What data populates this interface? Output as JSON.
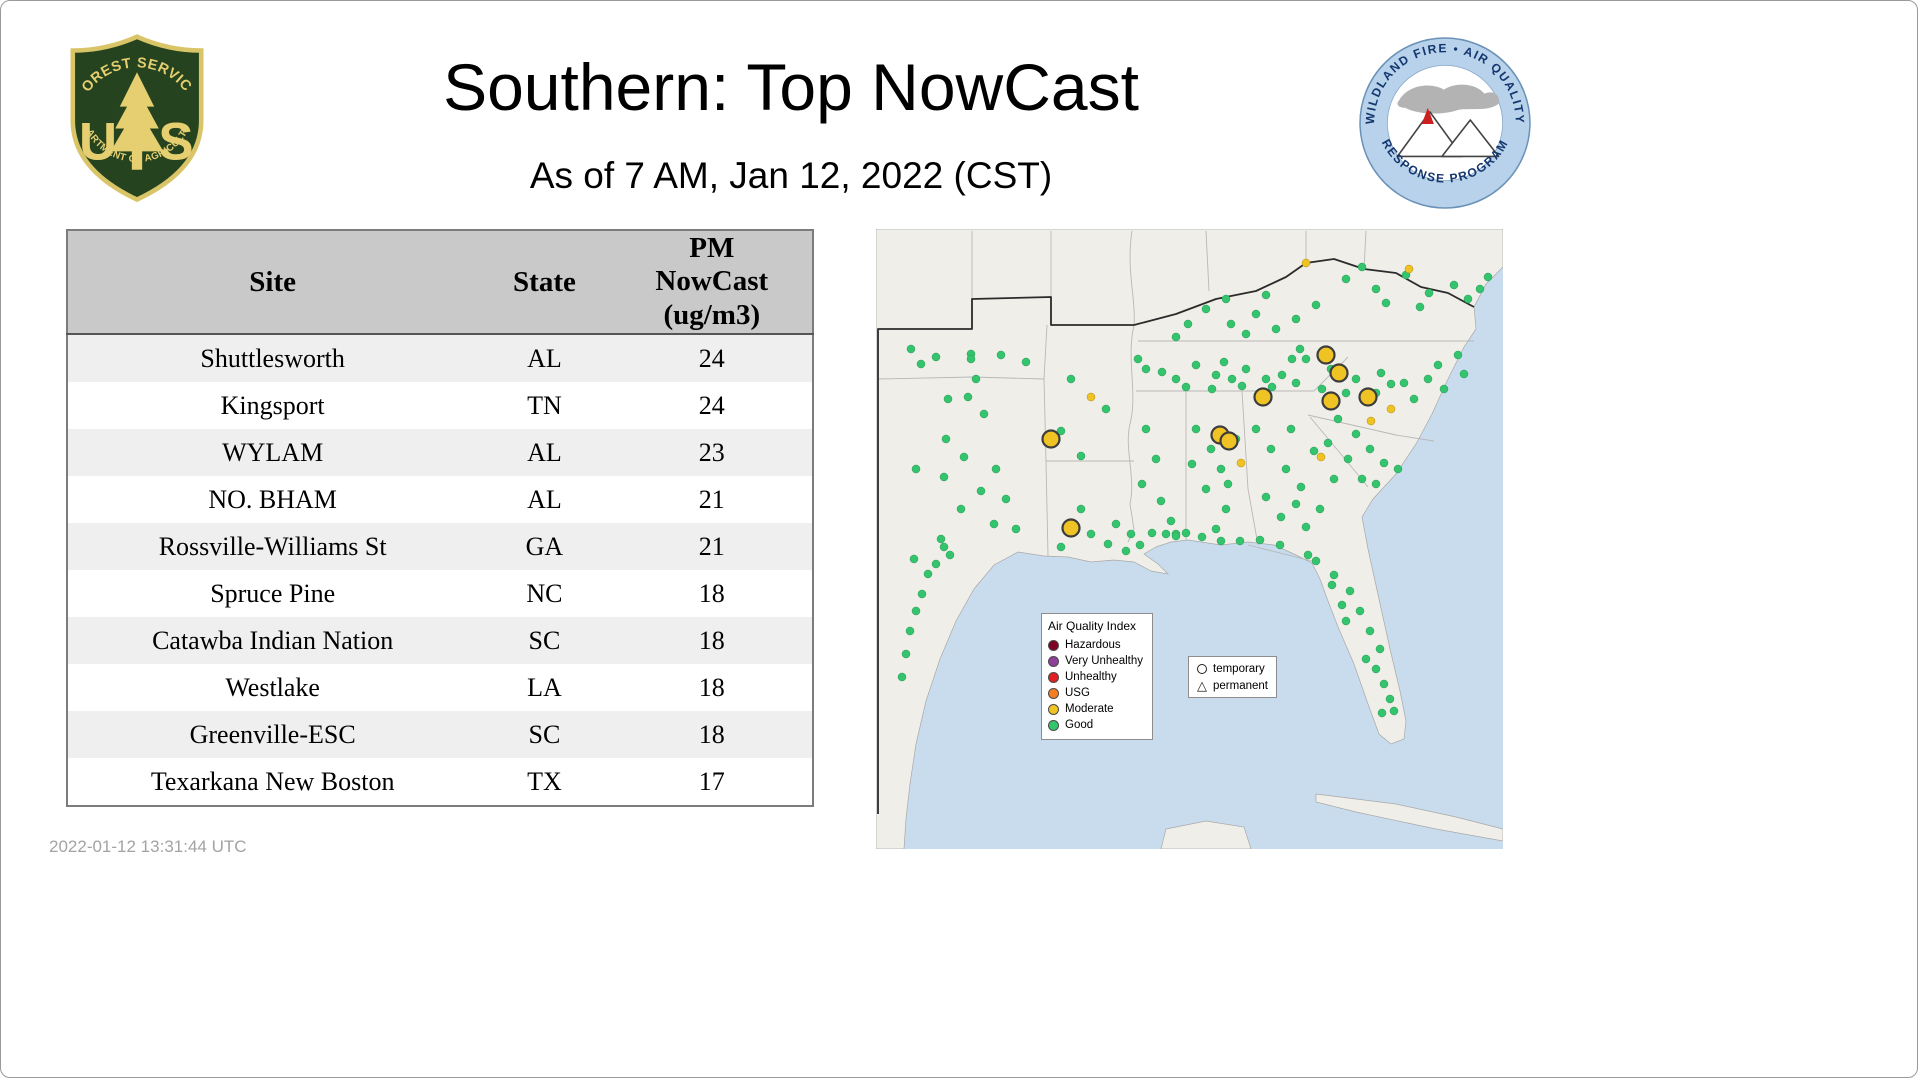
{
  "header": {
    "title": "Southern: Top NowCast",
    "subtitle": "As of 7 AM, Jan 12, 2022 (CST)",
    "usfs_logo": {
      "arc_top": "FOREST SERVICE",
      "letter_u": "U",
      "letter_s": "S",
      "arc_bottom": "DEPARTMENT OF AGRICULTURE"
    },
    "wfaqrp_logo": {
      "arc_top": "WILDLAND FIRE • AIR QUALITY",
      "arc_bottom": "RESPONSE PROGRAM"
    }
  },
  "footer": {
    "timestamp": "2022-01-12 13:31:44 UTC"
  },
  "table": {
    "columns": [
      "Site",
      "State",
      "PM NowCast (ug/m3)"
    ],
    "rows": [
      [
        "Shuttlesworth",
        "AL",
        "24"
      ],
      [
        "Kingsport",
        "TN",
        "24"
      ],
      [
        "WYLAM",
        "AL",
        "23"
      ],
      [
        "NO. BHAM",
        "AL",
        "21"
      ],
      [
        "Rossville-Williams St",
        "GA",
        "21"
      ],
      [
        "Spruce Pine",
        "NC",
        "18"
      ],
      [
        "Catawba Indian Nation",
        "SC",
        "18"
      ],
      [
        "Westlake",
        "LA",
        "18"
      ],
      [
        "Greenville-ESC",
        "SC",
        "18"
      ],
      [
        "Texarkana New Boston",
        "TX",
        "17"
      ]
    ]
  },
  "chart_data": {
    "type": "table",
    "title": "Southern: Top NowCast",
    "subtitle": "As of 7 AM, Jan 12, 2022 (CST)",
    "columns": [
      "Site",
      "State",
      "PM NowCast (ug/m3)"
    ],
    "rows": [
      [
        "Shuttlesworth",
        "AL",
        24
      ],
      [
        "Kingsport",
        "TN",
        24
      ],
      [
        "WYLAM",
        "AL",
        23
      ],
      [
        "NO. BHAM",
        "AL",
        21
      ],
      [
        "Rossville-Williams St",
        "GA",
        21
      ],
      [
        "Spruce Pine",
        "NC",
        18
      ],
      [
        "Catawba Indian Nation",
        "SC",
        18
      ],
      [
        "Westlake",
        "LA",
        18
      ],
      [
        "Greenville-ESC",
        "SC",
        18
      ],
      [
        "Texarkana New Boston",
        "TX",
        17
      ]
    ]
  },
  "map": {
    "colors": {
      "good": "#35c46e",
      "moderate": "#eec323"
    },
    "legend": {
      "title": "Air Quality Index",
      "items": [
        {
          "label": "Hazardous",
          "color": "#7e0023"
        },
        {
          "label": "Very Unhealthy",
          "color": "#8f3f97"
        },
        {
          "label": "Unhealthy",
          "color": "#e02020"
        },
        {
          "label": "USG",
          "color": "#f57e20"
        },
        {
          "label": "Moderate",
          "color": "#eec323"
        },
        {
          "label": "Good",
          "color": "#35c46e"
        }
      ]
    },
    "marker_legend": {
      "temporary": "temporary",
      "permanent": "permanent"
    },
    "points": {
      "good": [
        [
          95,
          125
        ],
        [
          100,
          150
        ],
        [
          92,
          168
        ],
        [
          108,
          185
        ],
        [
          70,
          210
        ],
        [
          88,
          228
        ],
        [
          120,
          240
        ],
        [
          105,
          262
        ],
        [
          85,
          280
        ],
        [
          118,
          295
        ],
        [
          65,
          310
        ],
        [
          72,
          170
        ],
        [
          130,
          270
        ],
        [
          140,
          300
        ],
        [
          68,
          248
        ],
        [
          45,
          135
        ],
        [
          40,
          240
        ],
        [
          68,
          318
        ],
        [
          74,
          326
        ],
        [
          60,
          335
        ],
        [
          52,
          345
        ],
        [
          46,
          365
        ],
        [
          40,
          382
        ],
        [
          34,
          402
        ],
        [
          30,
          425
        ],
        [
          26,
          448
        ],
        [
          38,
          330
        ],
        [
          60,
          128
        ],
        [
          95,
          130
        ],
        [
          125,
          126
        ],
        [
          150,
          133
        ],
        [
          35,
          120
        ],
        [
          185,
          202
        ],
        [
          205,
          227
        ],
        [
          195,
          150
        ],
        [
          230,
          180
        ],
        [
          215,
          305
        ],
        [
          232,
          315
        ],
        [
          250,
          322
        ],
        [
          264,
          316
        ],
        [
          185,
          318
        ],
        [
          205,
          280
        ],
        [
          240,
          295
        ],
        [
          255,
          305
        ],
        [
          270,
          200
        ],
        [
          280,
          230
        ],
        [
          266,
          255
        ],
        [
          285,
          272
        ],
        [
          295,
          292
        ],
        [
          276,
          304
        ],
        [
          300,
          305
        ],
        [
          270,
          140
        ],
        [
          300,
          150
        ],
        [
          320,
          136
        ],
        [
          340,
          146
        ],
        [
          356,
          150
        ],
        [
          370,
          140
        ],
        [
          390,
          150
        ],
        [
          406,
          146
        ],
        [
          310,
          158
        ],
        [
          336,
          160
        ],
        [
          366,
          157
        ],
        [
          396,
          158
        ],
        [
          420,
          154
        ],
        [
          262,
          130
        ],
        [
          416,
          130
        ],
        [
          286,
          143
        ],
        [
          348,
          133
        ],
        [
          330,
          80
        ],
        [
          355,
          95
        ],
        [
          380,
          85
        ],
        [
          400,
          100
        ],
        [
          420,
          90
        ],
        [
          350,
          70
        ],
        [
          390,
          66
        ],
        [
          440,
          76
        ],
        [
          370,
          105
        ],
        [
          312,
          95
        ],
        [
          300,
          108
        ],
        [
          320,
          200
        ],
        [
          335,
          220
        ],
        [
          345,
          240
        ],
        [
          330,
          260
        ],
        [
          350,
          280
        ],
        [
          340,
          300
        ],
        [
          316,
          235
        ],
        [
          360,
          210
        ],
        [
          352,
          255
        ],
        [
          380,
          200
        ],
        [
          395,
          220
        ],
        [
          410,
          240
        ],
        [
          425,
          258
        ],
        [
          390,
          268
        ],
        [
          405,
          288
        ],
        [
          430,
          298
        ],
        [
          444,
          280
        ],
        [
          458,
          250
        ],
        [
          415,
          200
        ],
        [
          438,
          222
        ],
        [
          452,
          214
        ],
        [
          420,
          275
        ],
        [
          462,
          190
        ],
        [
          480,
          205
        ],
        [
          494,
          220
        ],
        [
          508,
          234
        ],
        [
          472,
          230
        ],
        [
          522,
          240
        ],
        [
          486,
          250
        ],
        [
          500,
          255
        ],
        [
          430,
          130
        ],
        [
          455,
          140
        ],
        [
          480,
          150
        ],
        [
          505,
          144
        ],
        [
          528,
          154
        ],
        [
          552,
          150
        ],
        [
          568,
          160
        ],
        [
          446,
          160
        ],
        [
          470,
          164
        ],
        [
          500,
          164
        ],
        [
          538,
          170
        ],
        [
          562,
          136
        ],
        [
          582,
          126
        ],
        [
          424,
          120
        ],
        [
          588,
          145
        ],
        [
          515,
          155
        ],
        [
          470,
          50
        ],
        [
          500,
          60
        ],
        [
          530,
          46
        ],
        [
          553,
          64
        ],
        [
          578,
          56
        ],
        [
          510,
          74
        ],
        [
          544,
          78
        ],
        [
          592,
          70
        ],
        [
          604,
          60
        ],
        [
          612,
          48
        ],
        [
          486,
          38
        ],
        [
          440,
          332
        ],
        [
          458,
          346
        ],
        [
          474,
          362
        ],
        [
          484,
          382
        ],
        [
          494,
          402
        ],
        [
          504,
          420
        ],
        [
          500,
          440
        ],
        [
          508,
          455
        ],
        [
          514,
          470
        ],
        [
          490,
          430
        ],
        [
          470,
          392
        ],
        [
          456,
          356
        ],
        [
          432,
          326
        ],
        [
          518,
          482
        ],
        [
          506,
          484
        ],
        [
          466,
          376
        ],
        [
          345,
          312
        ],
        [
          364,
          312
        ],
        [
          384,
          311
        ],
        [
          404,
          316
        ],
        [
          300,
          307
        ],
        [
          290,
          305
        ],
        [
          310,
          304
        ],
        [
          326,
          308
        ]
      ],
      "moderate": [
        [
          215,
          168
        ],
        [
          533,
          40
        ],
        [
          365,
          234
        ],
        [
          445,
          228
        ],
        [
          495,
          192
        ],
        [
          515,
          180
        ],
        [
          430,
          34
        ]
      ],
      "moderate_temporary": [
        [
          450,
          126
        ],
        [
          463,
          144
        ],
        [
          387,
          168
        ],
        [
          455,
          172
        ],
        [
          492,
          168
        ],
        [
          175,
          210
        ],
        [
          344,
          206
        ],
        [
          353,
          212
        ],
        [
          195,
          299
        ]
      ]
    }
  }
}
